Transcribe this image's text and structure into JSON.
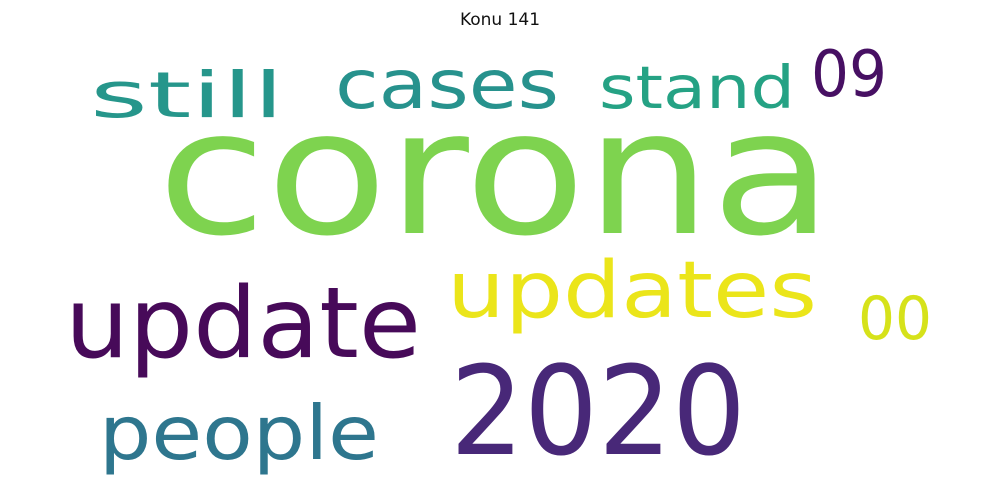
{
  "title": "Konu 141",
  "words": [
    {
      "text": "corona",
      "color": "#7ed34f"
    },
    {
      "text": "2020",
      "color": "#482878"
    },
    {
      "text": "update",
      "color": "#470a59"
    },
    {
      "text": "updates",
      "color": "#ebe51a"
    },
    {
      "text": "people",
      "color": "#2e768e"
    },
    {
      "text": "cases",
      "color": "#27928d"
    },
    {
      "text": "still",
      "color": "#26968b"
    },
    {
      "text": "stand",
      "color": "#25a284"
    },
    {
      "text": "09",
      "color": "#471063"
    },
    {
      "text": "00",
      "color": "#d6e21a"
    }
  ]
}
